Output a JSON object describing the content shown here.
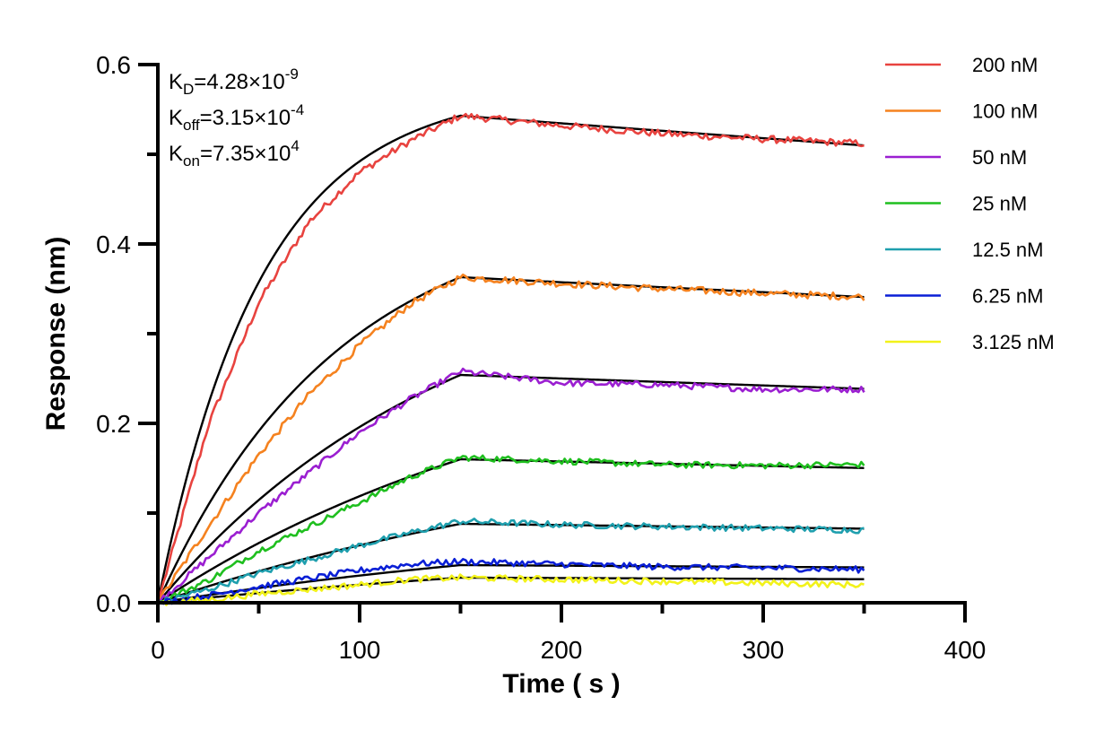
{
  "chart_data": {
    "type": "line",
    "title": "",
    "xlabel": "Time ( s )",
    "ylabel": "Response (nm)",
    "xlim": [
      0,
      400
    ],
    "ylim": [
      0,
      0.6
    ],
    "x_ticks": [
      "0",
      "100",
      "200",
      "300",
      "400"
    ],
    "y_ticks": [
      "0.0",
      "0.2",
      "0.4",
      "0.6"
    ],
    "grid": false,
    "legend_position": "right",
    "association_end": 150,
    "dissociation_end": 350,
    "annotations": [
      {
        "base": "K",
        "sub": "D",
        "mid": "=4.28×10",
        "sup": "-9"
      },
      {
        "base": "K",
        "sub": "off",
        "mid": "=3.15×10",
        "sup": "-4"
      },
      {
        "base": "K",
        "sub": "on",
        "mid": "=7.35×10",
        "sup": "4"
      }
    ],
    "series": [
      {
        "name": "200 nM",
        "color": "#e8433f",
        "points": [
          [
            0,
            0
          ],
          [
            25,
            0.198
          ],
          [
            50,
            0.335
          ],
          [
            75,
            0.425
          ],
          [
            100,
            0.48
          ],
          [
            125,
            0.515
          ],
          [
            150,
            0.543
          ],
          [
            200,
            0.532
          ],
          [
            250,
            0.523
          ],
          [
            300,
            0.517
          ],
          [
            350,
            0.512
          ]
        ]
      },
      {
        "name": "100 nM",
        "color": "#f5821f",
        "points": [
          [
            0,
            0
          ],
          [
            25,
            0.085
          ],
          [
            50,
            0.165
          ],
          [
            75,
            0.232
          ],
          [
            100,
            0.287
          ],
          [
            125,
            0.333
          ],
          [
            150,
            0.363
          ],
          [
            200,
            0.356
          ],
          [
            250,
            0.35
          ],
          [
            300,
            0.345
          ],
          [
            350,
            0.341
          ]
        ]
      },
      {
        "name": "50 nM",
        "color": "#9b1fd1",
        "points": [
          [
            0,
            0
          ],
          [
            25,
            0.05
          ],
          [
            50,
            0.1
          ],
          [
            75,
            0.145
          ],
          [
            100,
            0.19
          ],
          [
            125,
            0.227
          ],
          [
            150,
            0.258
          ],
          [
            200,
            0.245
          ],
          [
            250,
            0.243
          ],
          [
            300,
            0.238
          ],
          [
            350,
            0.238
          ]
        ]
      },
      {
        "name": "25 nM",
        "color": "#1fbf1f",
        "points": [
          [
            0,
            0
          ],
          [
            25,
            0.025
          ],
          [
            50,
            0.058
          ],
          [
            75,
            0.085
          ],
          [
            100,
            0.112
          ],
          [
            125,
            0.14
          ],
          [
            150,
            0.162
          ],
          [
            200,
            0.158
          ],
          [
            250,
            0.154
          ],
          [
            300,
            0.153
          ],
          [
            350,
            0.154
          ]
        ]
      },
      {
        "name": "12.5 nM",
        "color": "#1f9fae",
        "points": [
          [
            0,
            0
          ],
          [
            25,
            0.015
          ],
          [
            50,
            0.033
          ],
          [
            75,
            0.048
          ],
          [
            100,
            0.064
          ],
          [
            125,
            0.078
          ],
          [
            150,
            0.091
          ],
          [
            200,
            0.087
          ],
          [
            250,
            0.085
          ],
          [
            300,
            0.083
          ],
          [
            350,
            0.081
          ]
        ]
      },
      {
        "name": "6.25 nM",
        "color": "#0a1fd6",
        "points": [
          [
            0,
            0
          ],
          [
            25,
            0.008
          ],
          [
            50,
            0.018
          ],
          [
            75,
            0.027
          ],
          [
            100,
            0.036
          ],
          [
            125,
            0.043
          ],
          [
            150,
            0.046
          ],
          [
            200,
            0.043
          ],
          [
            250,
            0.04
          ],
          [
            300,
            0.039
          ],
          [
            350,
            0.037
          ]
        ]
      },
      {
        "name": "3.125 nM",
        "color": "#f2f21a",
        "points": [
          [
            0,
            0
          ],
          [
            25,
            0.003
          ],
          [
            50,
            0.01
          ],
          [
            75,
            0.015
          ],
          [
            100,
            0.02
          ],
          [
            125,
            0.026
          ],
          [
            150,
            0.028
          ],
          [
            200,
            0.026
          ],
          [
            250,
            0.024
          ],
          [
            300,
            0.022
          ],
          [
            350,
            0.02
          ]
        ]
      }
    ],
    "fits": [
      {
        "plateau": 0.543,
        "k_obs": 0.0195
      },
      {
        "plateau": 0.363,
        "k_obs": 0.0112
      },
      {
        "plateau": 0.254,
        "k_obs": 0.0068
      },
      {
        "plateau": 0.16,
        "k_obs": 0.0048
      },
      {
        "plateau": 0.088,
        "k_obs": 0.0038
      },
      {
        "plateau": 0.042,
        "k_obs": 0.0034
      },
      {
        "plateau": 0.028,
        "k_obs": 0.0032
      }
    ],
    "k_off": 0.000315
  }
}
